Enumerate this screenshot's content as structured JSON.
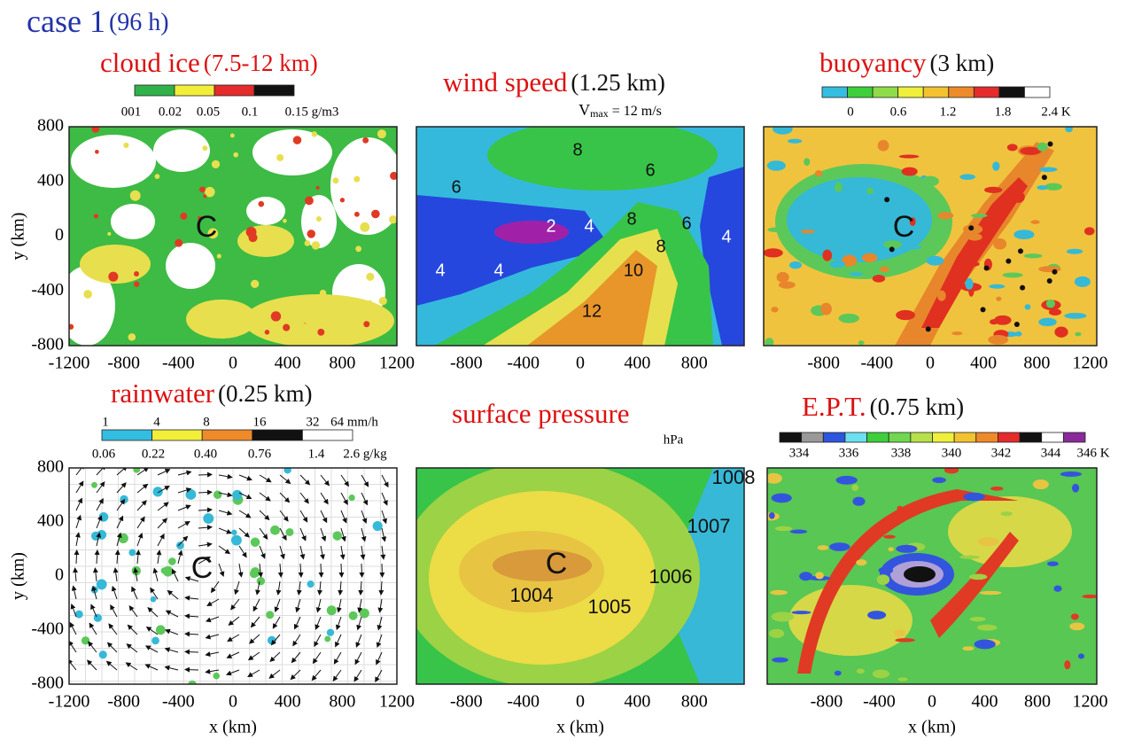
{
  "heading": {
    "case": "case 1",
    "time": "(96 h)"
  },
  "axes": {
    "y_label": "y (km)",
    "x_label": "x (km)",
    "y_ticks": [
      800,
      400,
      0,
      -400,
      -800
    ],
    "x_ticks_wide": [
      -1200,
      -800,
      -400,
      0,
      400,
      800,
      1200
    ],
    "x_ticks_narrow": [
      -800,
      -400,
      0,
      400,
      800
    ],
    "x_ticks_right": [
      -800,
      -400,
      0,
      400,
      800,
      1200
    ]
  },
  "panels": [
    {
      "name": "cloud ice",
      "level": "(7.5-12 km)",
      "scale_labels": [
        "001",
        "0.02",
        "0.05",
        "0.1",
        "0.15 g/m3"
      ],
      "center": "C"
    },
    {
      "name": "wind speed",
      "level": "(1.25 km)",
      "vmax": {
        "symbol": "V",
        "sub": "max",
        "value": " = 12 m/s"
      },
      "contour_labels": [
        8,
        6,
        6,
        2,
        4,
        8,
        6,
        8,
        4,
        4,
        4,
        10,
        12
      ]
    },
    {
      "name": "buoyancy",
      "level": "(3 km)",
      "scale_labels": [
        "0",
        "0.6",
        "1.2",
        "1.8",
        "2.4 K"
      ],
      "center": "C"
    },
    {
      "name": "rainwater",
      "level": "(0.25 km)",
      "scale_labels": [
        "1",
        "4",
        "8",
        "16",
        "32",
        "64 mm/h"
      ],
      "scale_labels_2": [
        "0.06",
        "0.22",
        "0.40",
        "0.76",
        "1.4",
        "2.6 g/kg"
      ],
      "center": "C"
    },
    {
      "name": "surface pressure",
      "unit": "hPa",
      "contour_labels": [
        1008,
        1007,
        1006,
        1004,
        1005
      ],
      "center": "C"
    },
    {
      "name": "E.P.T.",
      "level": "(0.75 km)",
      "scale_labels": [
        "334",
        "336",
        "338",
        "340",
        "342",
        "344",
        "346 K"
      ]
    }
  ]
}
